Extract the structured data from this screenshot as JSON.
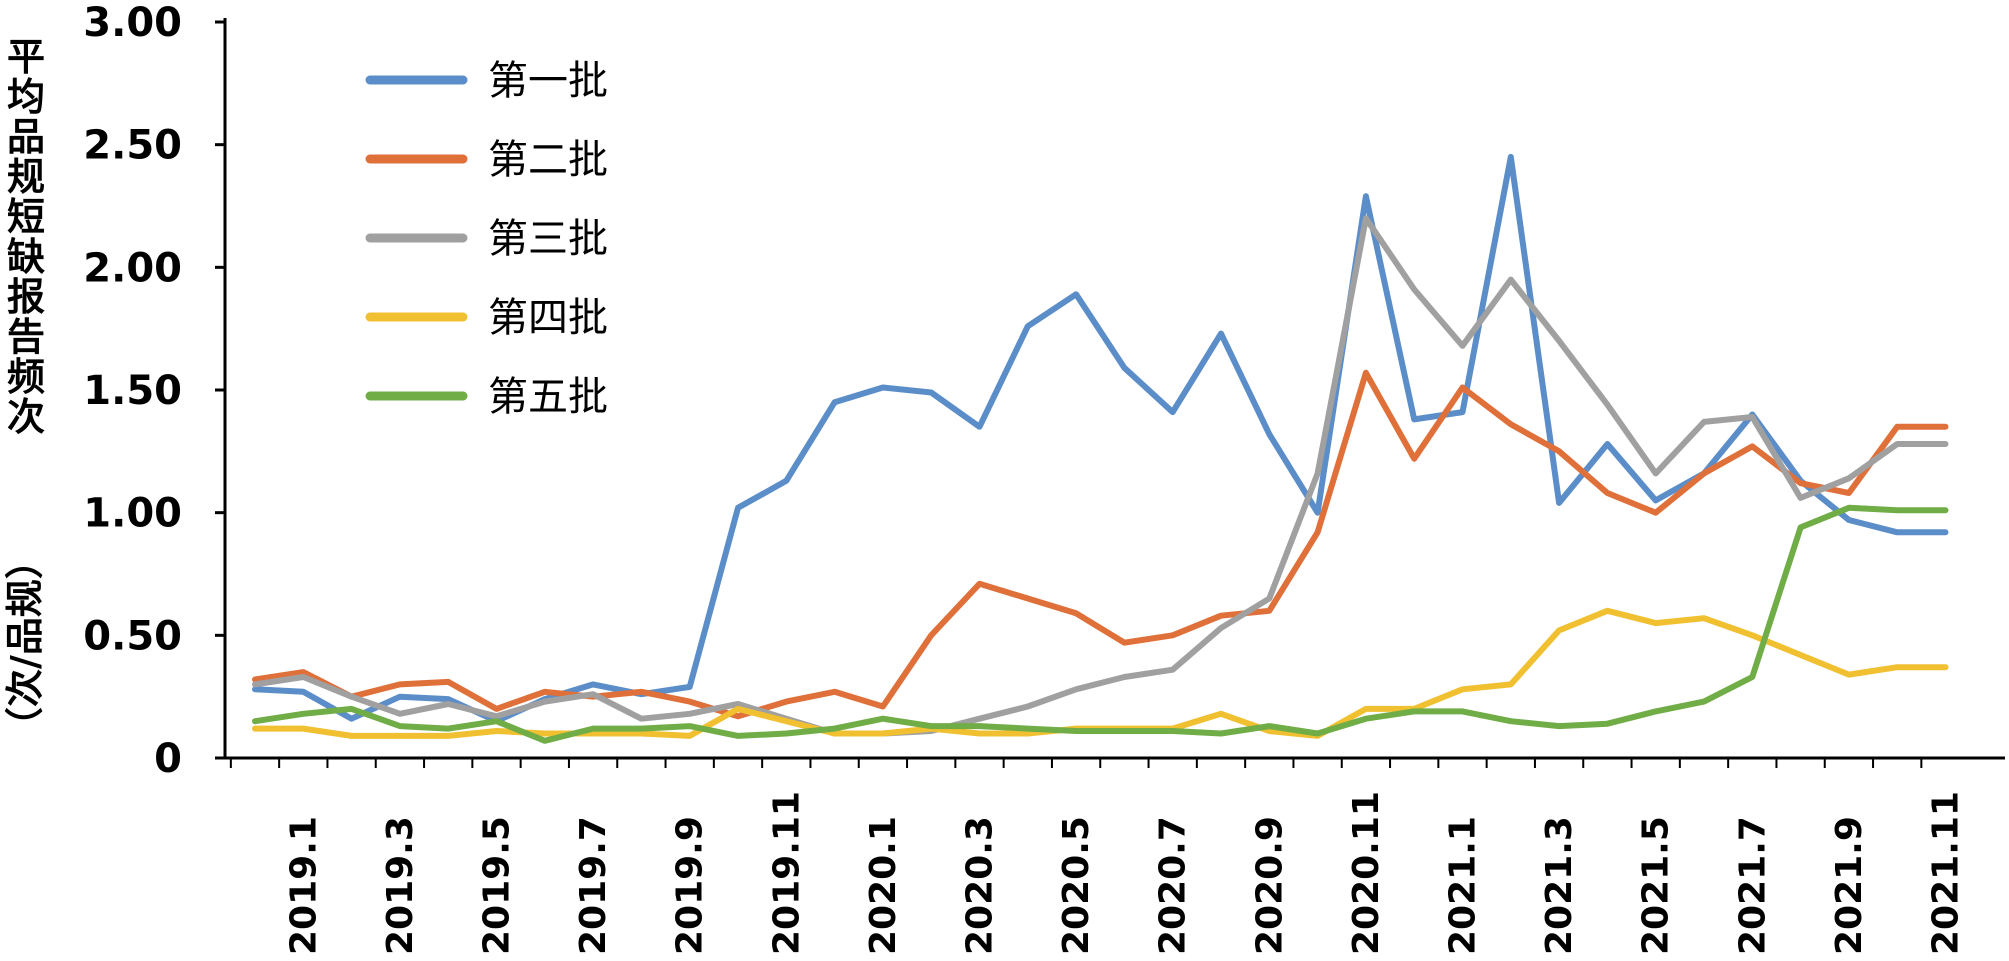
{
  "chart_data": {
    "type": "line",
    "title": "",
    "ylabel": "平均品规短缺报告频次（次/品规）",
    "ylabel_main": "平均品规短缺报告频次",
    "ylabel_unit": "（次/品规）",
    "xlabel": "",
    "ylim": [
      0,
      3.0
    ],
    "yticks": [
      0,
      0.5,
      1.0,
      1.5,
      2.0,
      2.5,
      3.0
    ],
    "ytick_labels": [
      "0",
      "0.50",
      "1.00",
      "1.50",
      "2.00",
      "2.50",
      "3.00"
    ],
    "x": [
      "2018.12",
      "2019.1",
      "2019.2",
      "2019.3",
      "2019.4",
      "2019.5",
      "2019.6",
      "2019.7",
      "2019.8",
      "2019.9",
      "2019.10",
      "2019.11",
      "2019.12",
      "2020.1",
      "2020.2",
      "2020.3",
      "2020.4",
      "2020.5",
      "2020.6",
      "2020.7",
      "2020.8",
      "2020.9",
      "2020.10",
      "2020.11",
      "2020.12",
      "2021.1",
      "2021.2",
      "2021.3",
      "2021.4",
      "2021.5",
      "2021.6",
      "2021.7",
      "2021.8",
      "2021.9",
      "2021.10",
      "2021.11"
    ],
    "xtick_labels": [
      "2019.1",
      "2019.3",
      "2019.5",
      "2019.7",
      "2019.9",
      "2019.11",
      "2020.1",
      "2020.3",
      "2020.5",
      "2020.7",
      "2020.9",
      "2020.11",
      "2021.1",
      "2021.3",
      "2021.5",
      "2021.7",
      "2021.9",
      "2021.11"
    ],
    "grid": false,
    "legend_position": "top-left",
    "series": [
      {
        "name": "第一批",
        "color": "#5b8ec9",
        "values": [
          0.28,
          0.27,
          0.16,
          0.25,
          0.24,
          0.15,
          0.24,
          0.3,
          0.26,
          0.29,
          1.02,
          1.13,
          1.45,
          1.51,
          1.49,
          1.35,
          1.76,
          1.89,
          1.59,
          1.41,
          1.73,
          1.32,
          1.0,
          2.29,
          1.38,
          1.41,
          2.45,
          1.04,
          1.28,
          1.05,
          1.16,
          1.4,
          1.13,
          0.97,
          0.92,
          0.92
        ]
      },
      {
        "name": "第二批",
        "color": "#e0703a",
        "values": [
          0.32,
          0.35,
          0.25,
          0.3,
          0.31,
          0.2,
          0.27,
          0.25,
          0.27,
          0.23,
          0.17,
          0.23,
          0.27,
          0.21,
          0.5,
          0.71,
          0.65,
          0.59,
          0.47,
          0.5,
          0.58,
          0.6,
          0.92,
          1.57,
          1.22,
          1.51,
          1.36,
          1.25,
          1.08,
          1.0,
          1.16,
          1.27,
          1.12,
          1.08,
          1.35,
          1.35
        ]
      },
      {
        "name": "第三批",
        "color": "#a0a0a0",
        "values": [
          0.3,
          0.33,
          0.25,
          0.18,
          0.22,
          0.17,
          0.23,
          0.26,
          0.16,
          0.18,
          0.22,
          0.16,
          0.1,
          0.1,
          0.11,
          0.16,
          0.21,
          0.28,
          0.33,
          0.36,
          0.53,
          0.65,
          1.16,
          2.2,
          1.91,
          1.68,
          1.95,
          1.7,
          1.44,
          1.16,
          1.37,
          1.39,
          1.06,
          1.14,
          1.28,
          1.28
        ]
      },
      {
        "name": "第四批",
        "color": "#f0c030",
        "values": [
          0.12,
          0.12,
          0.09,
          0.09,
          0.09,
          0.11,
          0.1,
          0.1,
          0.1,
          0.09,
          0.2,
          0.15,
          0.1,
          0.1,
          0.12,
          0.1,
          0.1,
          0.12,
          0.12,
          0.12,
          0.18,
          0.11,
          0.09,
          0.2,
          0.2,
          0.28,
          0.3,
          0.52,
          0.6,
          0.55,
          0.57,
          0.5,
          0.42,
          0.34,
          0.37,
          0.37
        ]
      },
      {
        "name": "第五批",
        "color": "#70ad47",
        "values": [
          0.15,
          0.18,
          0.2,
          0.13,
          0.12,
          0.15,
          0.07,
          0.12,
          0.12,
          0.13,
          0.09,
          0.1,
          0.12,
          0.16,
          0.13,
          0.13,
          0.12,
          0.11,
          0.11,
          0.11,
          0.1,
          0.13,
          0.1,
          0.16,
          0.19,
          0.19,
          0.15,
          0.13,
          0.14,
          0.19,
          0.23,
          0.33,
          0.94,
          1.02,
          1.01,
          1.01
        ]
      }
    ]
  }
}
